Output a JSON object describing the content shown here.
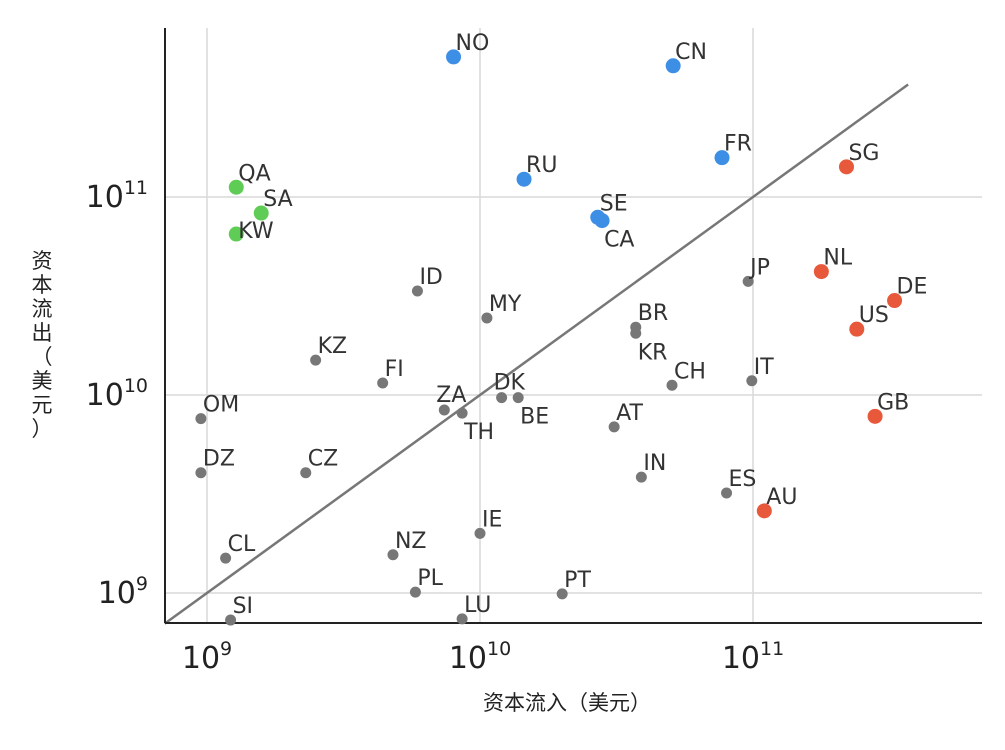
{
  "chart_data": {
    "type": "scatter",
    "xlabel": "资本流入（美元）",
    "ylabel": "资本流出（美元）",
    "x_scale": "log",
    "y_scale": "log",
    "xlim": [
      700000000.0,
      650000000000.0
    ],
    "ylim": [
      700000000.0,
      650000000000.0
    ],
    "x_ticks": [
      {
        "base": "10",
        "exp": "9",
        "value": 1000000000.0
      },
      {
        "base": "10",
        "exp": "10",
        "value": 10000000000.0
      },
      {
        "base": "10",
        "exp": "11",
        "value": 100000000000.0
      }
    ],
    "y_ticks": [
      {
        "base": "10",
        "exp": "9",
        "value": 1000000000.0
      },
      {
        "base": "10",
        "exp": "10",
        "value": 10000000000.0
      },
      {
        "base": "10",
        "exp": "11",
        "value": 100000000000.0
      }
    ],
    "grid": true,
    "reference_line": {
      "from": 700000000.0,
      "to": 370000000000.0
    },
    "colors": {
      "gray": "#777777",
      "blue": "#3d8fe6",
      "green": "#5fcc55",
      "red": "#e8583a"
    },
    "points": [
      {
        "label": "NO",
        "x": 8000000000.0,
        "y": 510000000000.0,
        "group": "blue",
        "size": "lg",
        "label_pos": "ne"
      },
      {
        "label": "CN",
        "x": 51000000000.0,
        "y": 460000000000.0,
        "group": "blue",
        "size": "lg",
        "label_pos": "ne"
      },
      {
        "label": "FR",
        "x": 77000000000.0,
        "y": 158000000000.0,
        "group": "blue",
        "size": "lg",
        "label_pos": "ne"
      },
      {
        "label": "RU",
        "x": 14500000000.0,
        "y": 123000000000.0,
        "group": "blue",
        "size": "lg",
        "label_pos": "ne"
      },
      {
        "label": "SE",
        "x": 27000000000.0,
        "y": 79000000000.0,
        "group": "blue",
        "size": "lg",
        "label_pos": "ne"
      },
      {
        "label": "CA",
        "x": 28000000000.0,
        "y": 76000000000.0,
        "group": "blue",
        "size": "lg",
        "label_pos": "se"
      },
      {
        "label": "QA",
        "x": 1280000000.0,
        "y": 112000000000.0,
        "group": "green",
        "size": "lg",
        "label_pos": "ne"
      },
      {
        "label": "SA",
        "x": 1580000000.0,
        "y": 83000000000.0,
        "group": "green",
        "size": "lg",
        "label_pos": "ne"
      },
      {
        "label": "KW",
        "x": 1280000000.0,
        "y": 65000000000.0,
        "group": "green",
        "size": "lg",
        "label_pos": "e"
      },
      {
        "label": "SG",
        "x": 220000000000.0,
        "y": 142000000000.0,
        "group": "red",
        "size": "lg",
        "label_pos": "ne"
      },
      {
        "label": "NL",
        "x": 178000000000.0,
        "y": 42000000000.0,
        "group": "red",
        "size": "lg",
        "label_pos": "ne"
      },
      {
        "label": "DE",
        "x": 330000000000.0,
        "y": 30000000000.0,
        "group": "red",
        "size": "lg",
        "label_pos": "ne"
      },
      {
        "label": "US",
        "x": 240000000000.0,
        "y": 21500000000.0,
        "group": "red",
        "size": "lg",
        "label_pos": "ne"
      },
      {
        "label": "GB",
        "x": 280000000000.0,
        "y": 7800000000.0,
        "group": "red",
        "size": "lg",
        "label_pos": "ne"
      },
      {
        "label": "AU",
        "x": 110000000000.0,
        "y": 2600000000.0,
        "group": "red",
        "size": "lg",
        "label_pos": "ne"
      },
      {
        "label": "JP",
        "x": 96000000000.0,
        "y": 37500000000.0,
        "group": "gray",
        "size": "sm",
        "label_pos": "ne"
      },
      {
        "label": "IT",
        "x": 99000000000.0,
        "y": 11800000000.0,
        "group": "gray",
        "size": "sm",
        "label_pos": "ne"
      },
      {
        "label": "ID",
        "x": 5900000000.0,
        "y": 33500000000.0,
        "group": "gray",
        "size": "sm",
        "label_pos": "ne"
      },
      {
        "label": "MY",
        "x": 10600000000.0,
        "y": 24500000000.0,
        "group": "gray",
        "size": "sm",
        "label_pos": "ne"
      },
      {
        "label": "BR",
        "x": 37200000000.0,
        "y": 22000000000.0,
        "group": "gray",
        "size": "sm",
        "label_pos": "ne"
      },
      {
        "label": "KR",
        "x": 37200000000.0,
        "y": 20500000000.0,
        "group": "gray",
        "size": "sm",
        "label_pos": "se"
      },
      {
        "label": "KZ",
        "x": 2500000000.0,
        "y": 15000000000.0,
        "group": "gray",
        "size": "sm",
        "label_pos": "ne"
      },
      {
        "label": "FI",
        "x": 4400000000.0,
        "y": 11500000000.0,
        "group": "gray",
        "size": "sm",
        "label_pos": "ne"
      },
      {
        "label": "CH",
        "x": 50500000000.0,
        "y": 11200000000.0,
        "group": "gray",
        "size": "sm",
        "label_pos": "ne"
      },
      {
        "label": "ZA",
        "x": 7400000000.0,
        "y": 8400000000.0,
        "group": "gray",
        "size": "sm",
        "label_pos": "n"
      },
      {
        "label": "DK",
        "x": 12000000000.0,
        "y": 9700000000.0,
        "group": "gray",
        "size": "sm",
        "label_pos": "n"
      },
      {
        "label": "BE",
        "x": 13800000000.0,
        "y": 9700000000.0,
        "group": "gray",
        "size": "sm",
        "label_pos": "se"
      },
      {
        "label": "TH",
        "x": 8600000000.0,
        "y": 8100000000.0,
        "group": "gray",
        "size": "sm",
        "label_pos": "se"
      },
      {
        "label": "OM",
        "x": 950000000.0,
        "y": 7600000000.0,
        "group": "gray",
        "size": "sm",
        "label_pos": "ne"
      },
      {
        "label": "AT",
        "x": 31000000000.0,
        "y": 6900000000.0,
        "group": "gray",
        "size": "sm",
        "label_pos": "ne"
      },
      {
        "label": "DZ",
        "x": 950000000.0,
        "y": 4050000000.0,
        "group": "gray",
        "size": "sm",
        "label_pos": "ne"
      },
      {
        "label": "CZ",
        "x": 2300000000.0,
        "y": 4050000000.0,
        "group": "gray",
        "size": "sm",
        "label_pos": "ne"
      },
      {
        "label": "IN",
        "x": 39000000000.0,
        "y": 3850000000.0,
        "group": "gray",
        "size": "sm",
        "label_pos": "ne"
      },
      {
        "label": "ES",
        "x": 80000000000.0,
        "y": 3200000000.0,
        "group": "gray",
        "size": "sm",
        "label_pos": "ne"
      },
      {
        "label": "IE",
        "x": 10000000000.0,
        "y": 2000000000.0,
        "group": "gray",
        "size": "sm",
        "label_pos": "ne"
      },
      {
        "label": "CL",
        "x": 1170000000.0,
        "y": 1500000000.0,
        "group": "gray",
        "size": "sm",
        "label_pos": "ne"
      },
      {
        "label": "NZ",
        "x": 4800000000.0,
        "y": 1560000000.0,
        "group": "gray",
        "size": "sm",
        "label_pos": "ne"
      },
      {
        "label": "PL",
        "x": 5800000000.0,
        "y": 1010000000.0,
        "group": "gray",
        "size": "sm",
        "label_pos": "ne"
      },
      {
        "label": "PT",
        "x": 20000000000.0,
        "y": 990000000.0,
        "group": "gray",
        "size": "sm",
        "label_pos": "ne"
      },
      {
        "label": "SI",
        "x": 1220000000.0,
        "y": 730000000.0,
        "group": "gray",
        "size": "sm",
        "label_pos": "ne"
      },
      {
        "label": "LU",
        "x": 8600000000.0,
        "y": 740000000.0,
        "group": "gray",
        "size": "sm",
        "label_pos": "ne"
      }
    ]
  }
}
